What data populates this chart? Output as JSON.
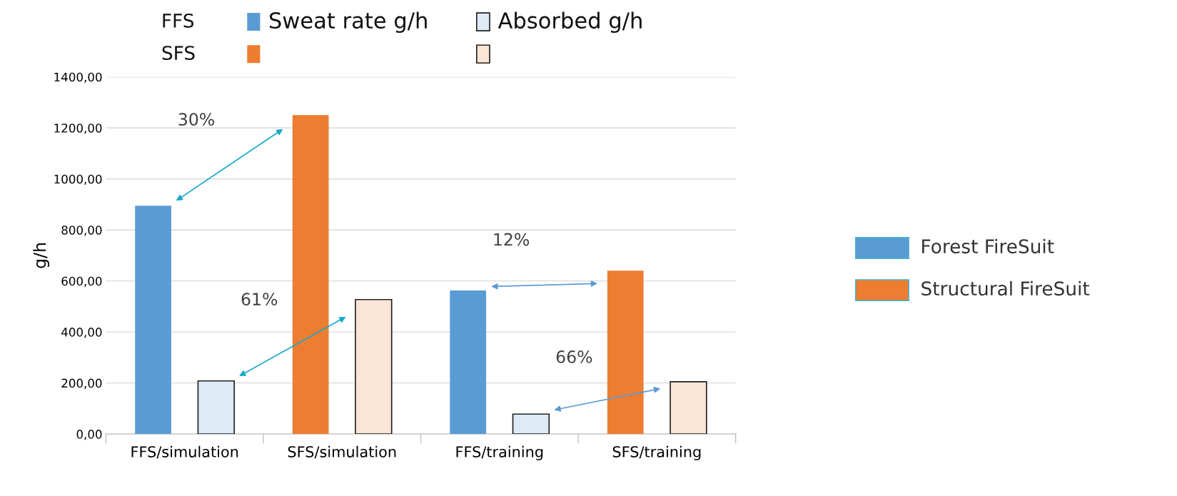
{
  "chart_data": {
    "type": "bar",
    "ylabel": "g/h",
    "categories": [
      "FFS/simulation",
      "SFS/simulation",
      "FFS/training",
      "SFS/training"
    ],
    "series": [
      {
        "name": "Sweat rate g/h",
        "colors": [
          "#5b9bd5",
          "#ed7d31",
          "#5b9bd5",
          "#ed7d31"
        ],
        "values": [
          895,
          1250,
          563,
          640
        ]
      },
      {
        "name": "Absorbed g/h",
        "colors": [
          "#deebf7",
          "#fbe5d6",
          "#deebf7",
          "#fbe5d6"
        ],
        "values": [
          208,
          527,
          78,
          205
        ]
      }
    ],
    "ylim": [
      0,
      1400
    ],
    "yticks": [
      {
        "value": 0,
        "label": "0,00"
      },
      {
        "value": 200,
        "label": "200,00"
      },
      {
        "value": 400,
        "label": "400,00"
      },
      {
        "value": 600,
        "label": "600,00"
      },
      {
        "value": 800,
        "label": "800,00"
      },
      {
        "value": 1000,
        "label": "1000,00"
      },
      {
        "value": 1200,
        "label": "1200,00"
      },
      {
        "value": 1400,
        "label": "1400,00"
      }
    ],
    "grid": "y",
    "legend": "top",
    "annotations": [
      "30%",
      "61%",
      "12%",
      "66%",
      "FFS",
      "SFS",
      "Forest FireSuit",
      "Structural FireSuit"
    ]
  }
}
